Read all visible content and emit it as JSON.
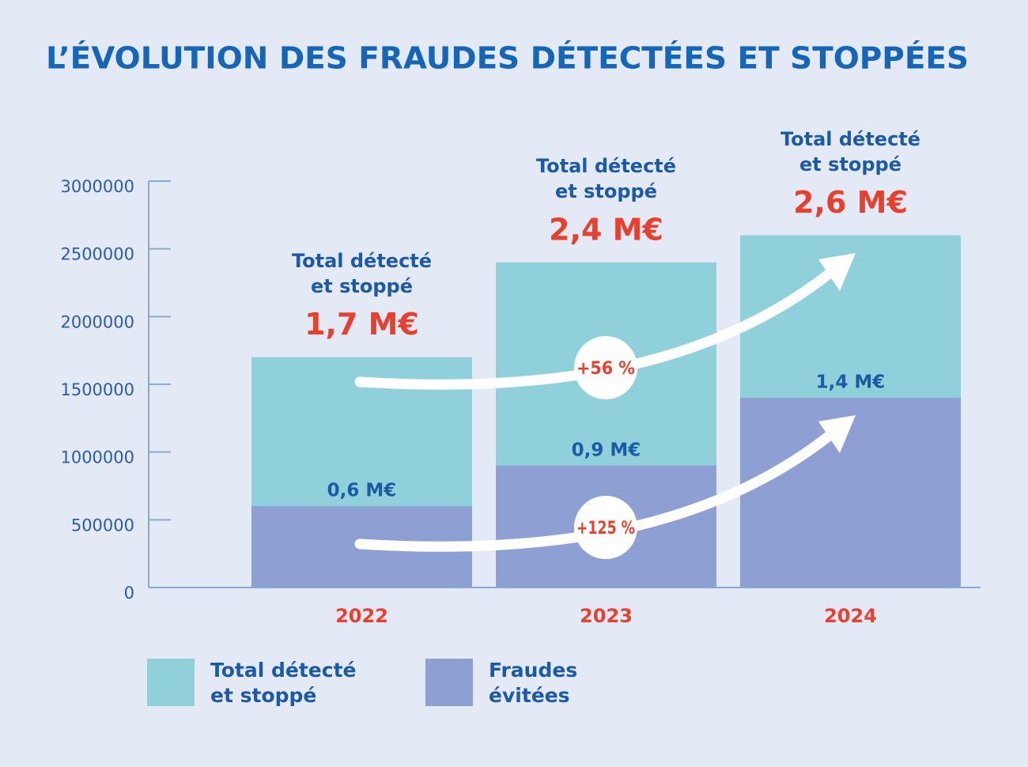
{
  "chart_data": {
    "type": "bar",
    "title": "L’ÉVOLUTION DES FRAUDES DÉTECTÉES ET STOPPÉES",
    "categories": [
      "2022",
      "2023",
      "2024"
    ],
    "series": [
      {
        "name": "Total détecté\net stoppé",
        "color": "#8fd0da",
        "values": [
          1700000,
          2400000,
          2600000
        ],
        "value_labels": [
          "1,7 M€",
          "2,4 M€",
          "2,6 M€"
        ]
      },
      {
        "name": "Fraudes\névitées",
        "color": "#8e9fd3",
        "values": [
          600000,
          900000,
          1400000
        ],
        "value_labels": [
          "0,6 M€",
          "0,9 M€",
          "1,4 M€"
        ]
      }
    ],
    "growth": [
      {
        "label": "+56 %"
      },
      {
        "label": "+125 %"
      }
    ],
    "ylim": [
      0,
      3000000
    ],
    "yticks": [
      0,
      500000,
      1000000,
      1500000,
      2000000,
      2500000,
      3000000
    ],
    "bars": "overlapping"
  }
}
